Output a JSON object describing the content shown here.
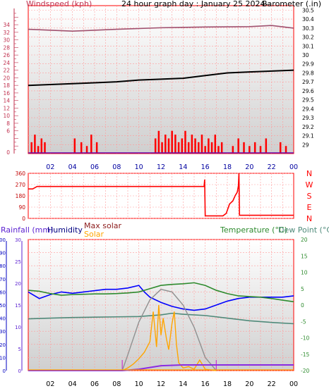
{
  "chart_data": [
    {
      "type": "line",
      "panel": "wind-baro",
      "header_left": "Windspeed (kph)",
      "header_center": "24 hour graph day : January 25 2024--",
      "header_right": "Barometer (.in)",
      "left_ticks": [
        6,
        8,
        10,
        12,
        14,
        16,
        18,
        20,
        22,
        24,
        26,
        28,
        30,
        32,
        34
      ],
      "left_bottom_tick": "0",
      "right_ticks": [
        29,
        29.1,
        29.2,
        29.3,
        29.4,
        29.5,
        29.6,
        29.7,
        29.8,
        29.9,
        30,
        30.1,
        30.2,
        30.3,
        30.4,
        30.5
      ],
      "x_ticks": [
        "02",
        "04",
        "06",
        "08",
        "10",
        "12",
        "14",
        "16",
        "18",
        "20",
        "22",
        "00"
      ],
      "series": [
        {
          "role": "barometer",
          "color": "#000000",
          "x": [
            0,
            2,
            4,
            6,
            8,
            10,
            12,
            14,
            16,
            18,
            20,
            22,
            24
          ],
          "y": [
            29.66,
            29.67,
            29.68,
            29.69,
            29.7,
            29.72,
            29.73,
            29.74,
            29.77,
            29.8,
            29.81,
            29.82,
            29.83
          ]
        },
        {
          "role": "wind-gust-band",
          "color": "#a0506e",
          "x": [
            0,
            4,
            8,
            12,
            16,
            20,
            22,
            24
          ],
          "y": [
            32.8,
            32.3,
            32.8,
            33.2,
            33.4,
            33.5,
            33.8,
            33.1
          ]
        },
        {
          "role": "wind-speed-bars",
          "color": "#ff0000",
          "x": [
            0.3,
            0.6,
            0.9,
            1.2,
            1.5,
            4.2,
            4.8,
            5.3,
            5.7,
            6.2,
            11.5,
            11.8,
            12.1,
            12.4,
            12.7,
            13.0,
            13.3,
            13.6,
            13.9,
            14.2,
            14.5,
            14.8,
            15.1,
            15.4,
            15.7,
            16.0,
            16.3,
            16.6,
            16.9,
            17.2,
            17.5,
            18.5,
            19.0,
            19.5,
            20.0,
            20.5,
            21.0,
            21.5,
            22.8,
            23.3
          ],
          "y": [
            3,
            5,
            2,
            4,
            3,
            4,
            3,
            2,
            5,
            3,
            4,
            6,
            3,
            5,
            4,
            6,
            5,
            3,
            4,
            6,
            3,
            5,
            4,
            3,
            5,
            2,
            4,
            3,
            5,
            2,
            3,
            2,
            4,
            3,
            2,
            3,
            2,
            4,
            3,
            2
          ]
        }
      ]
    },
    {
      "type": "line",
      "panel": "wind-direction",
      "left_ticks": [
        0,
        90,
        180,
        270,
        360
      ],
      "compass": [
        "N",
        "W",
        "S",
        "E",
        "N"
      ],
      "series": [
        {
          "role": "direction",
          "color": "#ff0000",
          "x": [
            0,
            0.4,
            0.8,
            15.9,
            15.95,
            16.0,
            17.6,
            17.9,
            18.2,
            18.5,
            18.7,
            18.9,
            19.0,
            19.05,
            19.1,
            24
          ],
          "y": [
            235,
            235,
            255,
            255,
            310,
            20,
            20,
            40,
            115,
            140,
            180,
            210,
            260,
            360,
            25,
            25
          ]
        }
      ]
    },
    {
      "type": "line",
      "panel": "rain-humidity-temp",
      "header_rainfall": "Rainfall (mm)",
      "header_humidity": "Humidity",
      "header_maxsolar": "Max solar",
      "header_solar": "Solar",
      "header_temp": "Temperature (°C)",
      "header_dew": "Dew Point (°C)",
      "humidity_ticks": [
        0,
        10,
        20,
        30,
        40,
        50,
        60,
        70,
        80,
        90,
        100
      ],
      "rain_ticks": [
        0,
        5,
        10,
        15,
        20,
        25,
        30
      ],
      "temp_ticks": [
        -20,
        -15,
        -10,
        -5,
        0,
        5,
        10,
        15,
        20
      ],
      "x_ticks": [
        "02",
        "04",
        "06",
        "08",
        "10",
        "12",
        "14",
        "16",
        "18",
        "20",
        "22",
        "00"
      ],
      "series": [
        {
          "role": "humidity",
          "color": "#0000ff",
          "x": [
            0,
            1,
            2,
            3,
            4,
            5,
            6,
            7,
            8,
            9,
            10,
            10.5,
            11,
            12,
            13,
            14,
            15,
            16,
            17,
            18,
            19,
            20,
            21,
            22,
            23,
            24
          ],
          "y": [
            60,
            55,
            58,
            60,
            59,
            60,
            61,
            62,
            62,
            63,
            65,
            60,
            56,
            52,
            49,
            47,
            46,
            47,
            50,
            53,
            55,
            56,
            56,
            56,
            56,
            57
          ]
        },
        {
          "role": "temperature",
          "color": "#2e8b2e",
          "x": [
            0,
            1,
            2,
            3,
            4,
            5,
            6,
            7,
            8,
            9,
            10,
            11,
            12,
            13,
            14,
            15,
            16,
            17,
            18,
            19,
            20,
            21,
            22,
            23,
            24
          ],
          "y": [
            4.5,
            4.2,
            3.5,
            3.0,
            3.2,
            3.3,
            3.4,
            3.4,
            3.5,
            3.7,
            4.0,
            5.0,
            6.0,
            6.3,
            6.5,
            6.8,
            6.0,
            4.5,
            3.5,
            2.8,
            2.6,
            2.4,
            2.0,
            1.5,
            1.0
          ]
        },
        {
          "role": "dew-point",
          "color": "#4f8a7a",
          "x": [
            0,
            2,
            4,
            6,
            8,
            10,
            12,
            13,
            14,
            16,
            18,
            20,
            22,
            24
          ],
          "y": [
            -4.2,
            -4.0,
            -3.8,
            -3.7,
            -3.6,
            -3.5,
            -3.0,
            -2.5,
            -2.8,
            -3.2,
            -4.0,
            -4.8,
            -5.3,
            -5.7
          ]
        },
        {
          "role": "max-solar",
          "color": "#909090",
          "x": [
            8.5,
            9,
            10,
            11,
            12,
            13,
            14,
            15,
            16,
            17
          ],
          "y": [
            0,
            12,
            37,
            54,
            62,
            60,
            50,
            33,
            10,
            0
          ]
        },
        {
          "role": "solar",
          "color": "#ffa500",
          "x": [
            8.5,
            9,
            9.5,
            10,
            10.5,
            11,
            11.3,
            11.6,
            11.8,
            12,
            12.2,
            12.5,
            12.7,
            13,
            13.2,
            13.4,
            13.6,
            14,
            14.5,
            15,
            15.5,
            16,
            17
          ],
          "y": [
            0,
            2,
            5,
            9,
            14,
            22,
            45,
            18,
            50,
            27,
            40,
            24,
            16,
            36,
            45,
            20,
            6,
            2,
            3,
            1,
            8,
            1,
            0
          ]
        },
        {
          "role": "rainfall",
          "color": "#8a2be2",
          "x": [
            0,
            8.5,
            10,
            12,
            14,
            16,
            18,
            20,
            22,
            24
          ],
          "y": [
            0,
            0,
            0.3,
            1.1,
            1.3,
            1.3,
            1.3,
            1.3,
            1.3,
            1.3
          ]
        }
      ]
    }
  ]
}
